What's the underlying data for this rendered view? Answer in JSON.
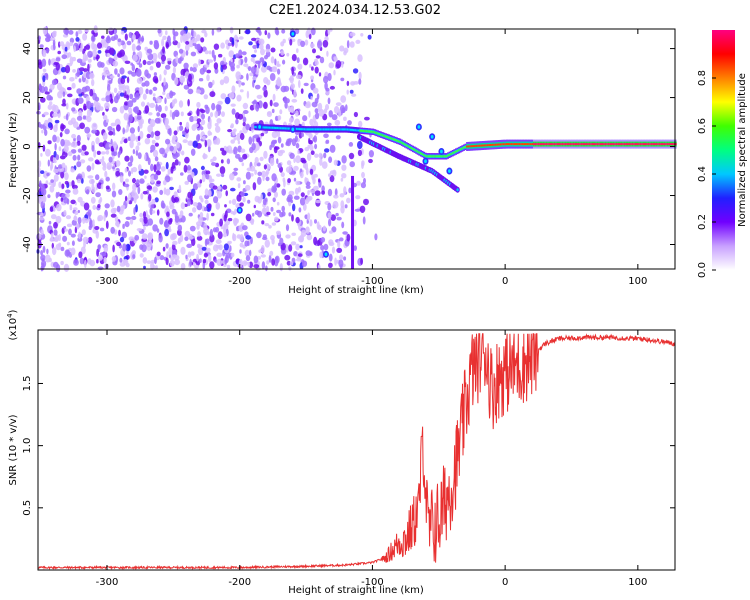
{
  "title": "C2E1.2024.034.12.53.G02",
  "chart_data": [
    {
      "type": "heatmap",
      "title": "C2E1.2024.034.12.53.G02",
      "xlabel": "Height of straight line (km)",
      "ylabel": "Frequency (Hz)",
      "xlim": [
        -352,
        128
      ],
      "ylim": [
        -50,
        48
      ],
      "x_ticks": [
        -300,
        -200,
        -100,
        0,
        100
      ],
      "y_ticks": [
        -40,
        -20,
        0,
        20,
        40
      ],
      "colorbar": {
        "label": "Normalized spectral amplitude",
        "range": [
          0.0,
          1.0
        ],
        "ticks": [
          "0.0",
          "0.2",
          "0.4",
          "0.6",
          "0.8"
        ],
        "colors": [
          "#ffffff",
          "#c8a0ff",
          "#7000ff",
          "#2020ff",
          "#00c8ff",
          "#00ff80",
          "#40ff00",
          "#ffff00",
          "#ff8000",
          "#ff0000",
          "#ff0080"
        ]
      },
      "features": {
        "noise_region": [
          -352,
          -115
        ],
        "main_trace": [
          {
            "x": -190,
            "y": 8
          },
          {
            "x": -150,
            "y": 7
          },
          {
            "x": -120,
            "y": 7
          },
          {
            "x": -100,
            "y": 6
          },
          {
            "x": -80,
            "y": 2
          },
          {
            "x": -60,
            "y": -4
          },
          {
            "x": -45,
            "y": -4
          },
          {
            "x": -30,
            "y": 0
          },
          {
            "x": 0,
            "y": 1
          },
          {
            "x": 50,
            "y": 1
          },
          {
            "x": 128,
            "y": 1
          }
        ],
        "branch_trace": [
          {
            "x": -110,
            "y": 4
          },
          {
            "x": -80,
            "y": -4
          },
          {
            "x": -55,
            "y": -10
          },
          {
            "x": -35,
            "y": -18
          }
        ]
      }
    },
    {
      "type": "line",
      "xlabel": "Height of straight line (km)",
      "ylabel": "SNR (10 * v/v)",
      "y_scale_label": "(x10",
      "y_scale_exp": "4",
      "y_scale_close": ")",
      "xlim": [
        -352,
        128
      ],
      "ylim": [
        0,
        1.93
      ],
      "x_ticks": [
        -300,
        -200,
        -100,
        0,
        100
      ],
      "y_ticks": [
        0.5,
        1.0,
        1.5
      ],
      "y_tick_labels": [
        "0.5",
        "1.0",
        "1.5"
      ],
      "line_color": "#e83030",
      "series": [
        {
          "points": [
            [
              -352,
              0.02
            ],
            [
              -300,
              0.02
            ],
            [
              -250,
              0.02
            ],
            [
              -200,
              0.02
            ],
            [
              -150,
              0.03
            ],
            [
              -120,
              0.04
            ],
            [
              -100,
              0.06
            ],
            [
              -90,
              0.1
            ],
            [
              -80,
              0.22
            ],
            [
              -75,
              0.25
            ],
            [
              -70,
              0.35
            ],
            [
              -65,
              0.5
            ],
            [
              -62,
              1.06
            ],
            [
              -58,
              0.3
            ],
            [
              -50,
              0.4
            ],
            [
              -45,
              0.55
            ],
            [
              -40,
              0.7
            ],
            [
              -35,
              0.95
            ],
            [
              -30,
              1.3
            ],
            [
              -25,
              1.6
            ],
            [
              -20,
              1.7
            ],
            [
              -15,
              1.78
            ],
            [
              -10,
              1.45
            ],
            [
              -5,
              1.55
            ],
            [
              0,
              1.6
            ],
            [
              10,
              1.65
            ],
            [
              20,
              1.72
            ],
            [
              30,
              1.82
            ],
            [
              40,
              1.86
            ],
            [
              60,
              1.87
            ],
            [
              80,
              1.87
            ],
            [
              100,
              1.86
            ],
            [
              110,
              1.85
            ],
            [
              128,
              1.82
            ]
          ]
        }
      ]
    }
  ]
}
